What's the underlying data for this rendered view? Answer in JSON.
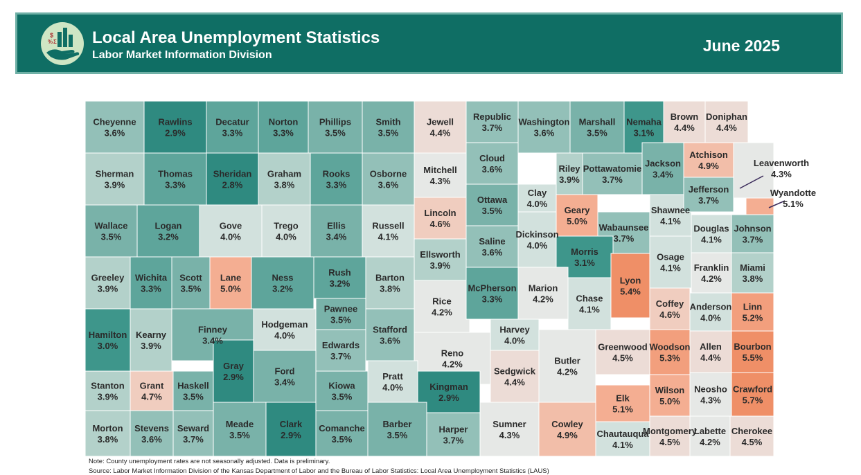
{
  "header": {
    "title": "Local Area Unemployment Statistics",
    "subtitle": "Labor Market Information Division",
    "period": "June 2025",
    "background_color": "#0f6e64",
    "logo_icon": "hand-holding-chart-icon"
  },
  "map": {
    "color_scale": [
      {
        "max": 2.9,
        "color": "#2f8a80"
      },
      {
        "max": 3.1,
        "color": "#3e968b"
      },
      {
        "max": 3.3,
        "color": "#5ea59b"
      },
      {
        "max": 3.5,
        "color": "#79b2a9"
      },
      {
        "max": 3.7,
        "color": "#93c0b8"
      },
      {
        "max": 3.9,
        "color": "#b3d1ca"
      },
      {
        "max": 4.1,
        "color": "#d2e1dd"
      },
      {
        "max": 4.3,
        "color": "#e6e8e6"
      },
      {
        "max": 4.5,
        "color": "#ecdcd6"
      },
      {
        "max": 4.7,
        "color": "#f0cdbf"
      },
      {
        "max": 4.9,
        "color": "#f2bea9"
      },
      {
        "max": 5.1,
        "color": "#f4ae92"
      },
      {
        "max": 5.3,
        "color": "#f29f7d"
      },
      {
        "max": 9.9,
        "color": "#ef8f67"
      }
    ],
    "counties": [
      {
        "name": "Cheyenne",
        "rate": "3.6%"
      },
      {
        "name": "Rawlins",
        "rate": "2.9%"
      },
      {
        "name": "Decatur",
        "rate": "3.3%"
      },
      {
        "name": "Norton",
        "rate": "3.3%"
      },
      {
        "name": "Phillips",
        "rate": "3.5%"
      },
      {
        "name": "Smith",
        "rate": "3.5%"
      },
      {
        "name": "Jewell",
        "rate": "4.4%"
      },
      {
        "name": "Republic",
        "rate": "3.7%"
      },
      {
        "name": "Washington",
        "rate": "3.6%"
      },
      {
        "name": "Marshall",
        "rate": "3.5%"
      },
      {
        "name": "Nemaha",
        "rate": "3.1%"
      },
      {
        "name": "Brown",
        "rate": "4.4%"
      },
      {
        "name": "Doniphan",
        "rate": "4.4%"
      },
      {
        "name": "Sherman",
        "rate": "3.9%"
      },
      {
        "name": "Thomas",
        "rate": "3.3%"
      },
      {
        "name": "Sheridan",
        "rate": "2.8%"
      },
      {
        "name": "Graham",
        "rate": "3.8%"
      },
      {
        "name": "Rooks",
        "rate": "3.3%"
      },
      {
        "name": "Osborne",
        "rate": "3.6%"
      },
      {
        "name": "Mitchell",
        "rate": "4.3%"
      },
      {
        "name": "Cloud",
        "rate": "3.6%"
      },
      {
        "name": "Clay",
        "rate": "4.0%"
      },
      {
        "name": "Riley",
        "rate": "3.9%"
      },
      {
        "name": "Pottawatomie",
        "rate": "3.7%"
      },
      {
        "name": "Jackson",
        "rate": "3.4%"
      },
      {
        "name": "Atchison",
        "rate": "4.9%"
      },
      {
        "name": "Leavenworth",
        "rate": "4.3%"
      },
      {
        "name": "Wyandotte",
        "rate": "5.1%"
      },
      {
        "name": "Wallace",
        "rate": "3.5%"
      },
      {
        "name": "Logan",
        "rate": "3.2%"
      },
      {
        "name": "Gove",
        "rate": "4.0%"
      },
      {
        "name": "Trego",
        "rate": "4.0%"
      },
      {
        "name": "Ellis",
        "rate": "3.4%"
      },
      {
        "name": "Russell",
        "rate": "4.1%"
      },
      {
        "name": "Lincoln",
        "rate": "4.6%"
      },
      {
        "name": "Ottawa",
        "rate": "3.5%"
      },
      {
        "name": "Dickinson",
        "rate": "4.0%"
      },
      {
        "name": "Geary",
        "rate": "5.0%"
      },
      {
        "name": "Wabaunsee",
        "rate": "3.7%"
      },
      {
        "name": "Shawnee",
        "rate": "4.1%"
      },
      {
        "name": "Jefferson",
        "rate": "3.7%"
      },
      {
        "name": "Douglas",
        "rate": "4.1%"
      },
      {
        "name": "Johnson",
        "rate": "3.7%"
      },
      {
        "name": "Greeley",
        "rate": "3.9%"
      },
      {
        "name": "Wichita",
        "rate": "3.3%"
      },
      {
        "name": "Scott",
        "rate": "3.5%"
      },
      {
        "name": "Lane",
        "rate": "5.0%"
      },
      {
        "name": "Ness",
        "rate": "3.2%"
      },
      {
        "name": "Rush",
        "rate": "3.2%"
      },
      {
        "name": "Barton",
        "rate": "3.8%"
      },
      {
        "name": "Ellsworth",
        "rate": "3.9%"
      },
      {
        "name": "Saline",
        "rate": "3.6%"
      },
      {
        "name": "Morris",
        "rate": "3.1%"
      },
      {
        "name": "Osage",
        "rate": "4.1%"
      },
      {
        "name": "Franklin",
        "rate": "4.2%"
      },
      {
        "name": "Miami",
        "rate": "3.8%"
      },
      {
        "name": "Rice",
        "rate": "4.2%"
      },
      {
        "name": "McPherson",
        "rate": "3.3%"
      },
      {
        "name": "Marion",
        "rate": "4.2%"
      },
      {
        "name": "Chase",
        "rate": "4.1%"
      },
      {
        "name": "Lyon",
        "rate": "5.4%"
      },
      {
        "name": "Coffey",
        "rate": "4.6%"
      },
      {
        "name": "Anderson",
        "rate": "4.0%"
      },
      {
        "name": "Linn",
        "rate": "5.2%"
      },
      {
        "name": "Hamilton",
        "rate": "3.0%"
      },
      {
        "name": "Kearny",
        "rate": "3.9%"
      },
      {
        "name": "Finney",
        "rate": "3.4%"
      },
      {
        "name": "Hodgeman",
        "rate": "4.0%"
      },
      {
        "name": "Pawnee",
        "rate": "3.5%"
      },
      {
        "name": "Stafford",
        "rate": "3.6%"
      },
      {
        "name": "Reno",
        "rate": "4.2%"
      },
      {
        "name": "Harvey",
        "rate": "4.0%"
      },
      {
        "name": "Butler",
        "rate": "4.2%"
      },
      {
        "name": "Greenwood",
        "rate": "4.5%"
      },
      {
        "name": "Woodson",
        "rate": "5.3%"
      },
      {
        "name": "Allen",
        "rate": "4.4%"
      },
      {
        "name": "Bourbon",
        "rate": "5.5%"
      },
      {
        "name": "Gray",
        "rate": "2.9%"
      },
      {
        "name": "Ford",
        "rate": "3.4%"
      },
      {
        "name": "Edwards",
        "rate": "3.7%"
      },
      {
        "name": "Sedgwick",
        "rate": "4.4%"
      },
      {
        "name": "Stanton",
        "rate": "3.9%"
      },
      {
        "name": "Grant",
        "rate": "4.7%"
      },
      {
        "name": "Haskell",
        "rate": "3.5%"
      },
      {
        "name": "Kiowa",
        "rate": "3.5%"
      },
      {
        "name": "Pratt",
        "rate": "4.0%"
      },
      {
        "name": "Kingman",
        "rate": "2.9%"
      },
      {
        "name": "Wilson",
        "rate": "5.0%"
      },
      {
        "name": "Neosho",
        "rate": "4.3%"
      },
      {
        "name": "Crawford",
        "rate": "5.7%"
      },
      {
        "name": "Elk",
        "rate": "5.1%"
      },
      {
        "name": "Morton",
        "rate": "3.8%"
      },
      {
        "name": "Stevens",
        "rate": "3.6%"
      },
      {
        "name": "Seward",
        "rate": "3.7%"
      },
      {
        "name": "Meade",
        "rate": "3.5%"
      },
      {
        "name": "Clark",
        "rate": "2.9%"
      },
      {
        "name": "Comanche",
        "rate": "3.5%"
      },
      {
        "name": "Barber",
        "rate": "3.5%"
      },
      {
        "name": "Harper",
        "rate": "3.7%"
      },
      {
        "name": "Sumner",
        "rate": "4.3%"
      },
      {
        "name": "Cowley",
        "rate": "4.9%"
      },
      {
        "name": "Chautauqua",
        "rate": "4.1%"
      },
      {
        "name": "Montgomery",
        "rate": "4.5%"
      },
      {
        "name": "Labette",
        "rate": "4.2%"
      },
      {
        "name": "Cherokee",
        "rate": "4.5%"
      }
    ]
  },
  "footer": {
    "note": "Note: County unemployment rates are not seasonally adjusted. Data is preliminary.",
    "source": "Source: Labor Market Information Division of the Kansas Department of Labor and the Bureau of Labor Statistics: Local Area Unemployment Statistics (LAUS)"
  }
}
